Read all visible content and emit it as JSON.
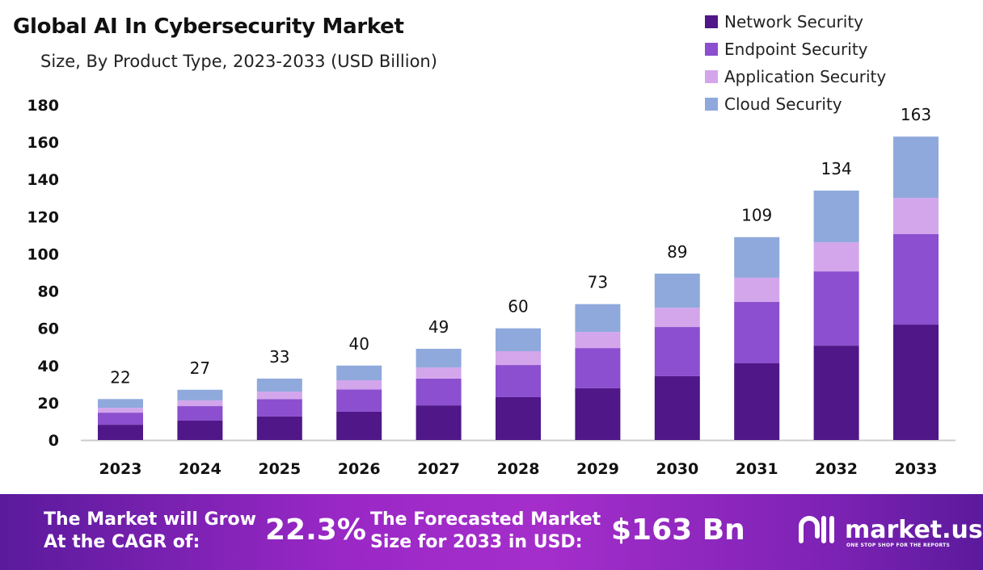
{
  "chart_data": {
    "type": "bar",
    "stacked": true,
    "title": "Global AI In Cybersecurity Market",
    "subtitle": "Size, By Product Type, 2023-2033 (USD Billion)",
    "categories": [
      "2023",
      "2024",
      "2025",
      "2026",
      "2027",
      "2028",
      "2029",
      "2030",
      "2031",
      "2032",
      "2033"
    ],
    "series": [
      {
        "name": "Network Security",
        "color": "#4f1787",
        "values": [
          8.2,
          10.4,
          12.6,
          15.2,
          18.6,
          23,
          27.8,
          34.3,
          41.2,
          50.7,
          62
        ]
      },
      {
        "name": "Endpoint Security",
        "color": "#8b4fcf",
        "values": [
          6.5,
          7.8,
          9.4,
          12,
          14.4,
          17.3,
          21.6,
          26.4,
          33,
          39.9,
          48.6
        ]
      },
      {
        "name": "Application Security",
        "color": "#d3a6ec",
        "values": [
          2.6,
          3.1,
          4,
          4.9,
          6,
          7.4,
          8.7,
          10.4,
          13,
          15.6,
          19.5
        ]
      },
      {
        "name": "Cloud Security",
        "color": "#8fa9dc",
        "values": [
          4.7,
          5.7,
          7,
          7.9,
          10,
          12.3,
          14.9,
          18.3,
          21.8,
          27.8,
          32.9
        ]
      }
    ],
    "totals": [
      "22",
      "27",
      "33",
      "40",
      "49",
      "60",
      "73",
      "89",
      "109",
      "134",
      "163"
    ],
    "ylim": [
      0,
      180
    ],
    "yticks": [
      "0",
      "20",
      "40",
      "60",
      "80",
      "100",
      "120",
      "140",
      "160",
      "180"
    ],
    "grid": false,
    "legend": "top-right"
  },
  "banner": {
    "cagr_label_1": "The Market will Grow",
    "cagr_label_2": "At the CAGR of:",
    "cagr_value": "22.3%",
    "forecast_label_1": "The Forecasted Market",
    "forecast_label_2": "Size for 2033 in USD:",
    "forecast_value": "$163 Bn",
    "logo_name": "market.us",
    "logo_tagline": "ONE STOP SHOP FOR THE REPORTS"
  }
}
